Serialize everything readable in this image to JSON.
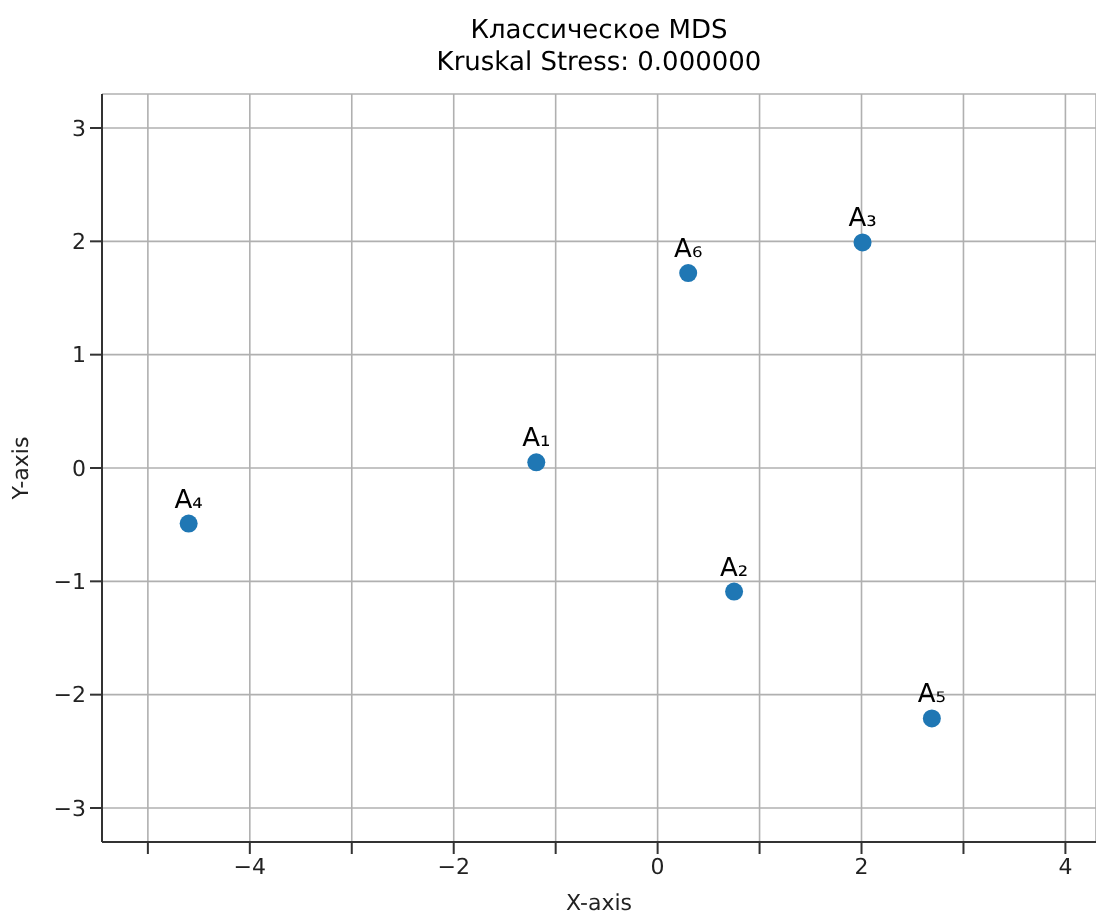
{
  "chart_data": {
    "type": "scatter",
    "title": "Классическое MDS",
    "subtitle": "Kruskal Stress: 0.000000",
    "xlabel": "X-axis",
    "ylabel": "Y-axis",
    "x": [
      -1.19,
      0.75,
      2.01,
      -4.6,
      2.69,
      0.3
    ],
    "series": [
      {
        "color": "#1f77b4",
        "values": [
          0.05,
          -1.09,
          1.99,
          -0.49,
          -2.21,
          1.72
        ]
      }
    ],
    "annotations": [
      {
        "text": "A₁",
        "x": -1.19,
        "y": 0.05
      },
      {
        "text": "A₂",
        "x": 0.75,
        "y": -1.09
      },
      {
        "text": "A₃",
        "x": 2.01,
        "y": 1.99
      },
      {
        "text": "A₄",
        "x": -4.6,
        "y": -0.49
      },
      {
        "text": "A₅",
        "x": 2.69,
        "y": -2.21
      },
      {
        "text": "A₆",
        "x": 0.3,
        "y": 1.72
      }
    ],
    "xlim": [
      -5.45,
      4.3
    ],
    "ylim": [
      -3.3,
      3.3
    ],
    "xticks": [
      {
        "value": -5,
        "label": null
      },
      -4,
      {
        "value": -3,
        "label": null
      },
      -2,
      {
        "value": -1,
        "label": null
      },
      0,
      {
        "value": 1,
        "label": null
      },
      2,
      {
        "value": 3,
        "label": null
      },
      4
    ],
    "yticks": [
      -3,
      -2,
      -1,
      0,
      1,
      2,
      3
    ],
    "grid": true,
    "marker": "circle"
  }
}
